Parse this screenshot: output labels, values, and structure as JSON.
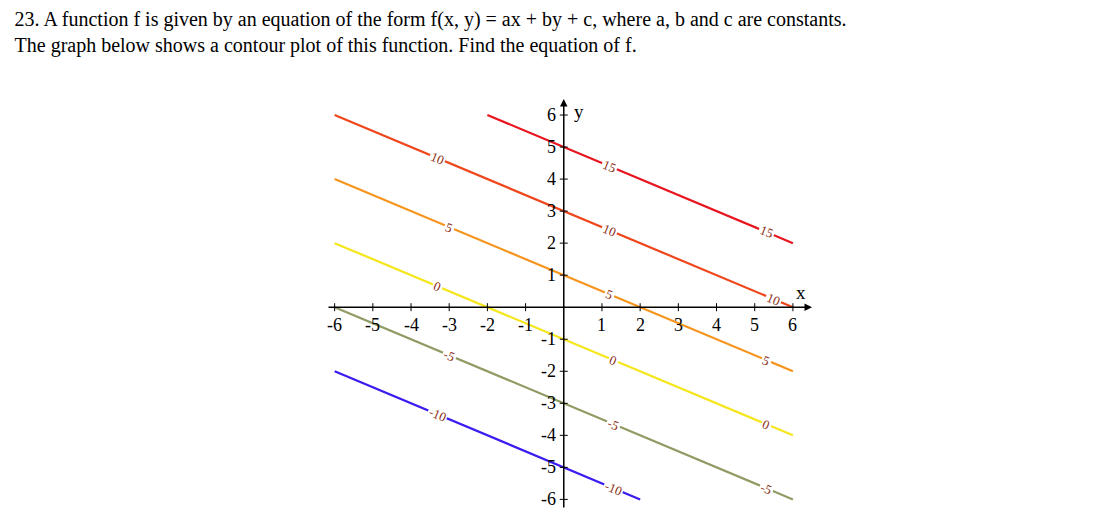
{
  "chart_data": {
    "type": "contour_lines",
    "title": [
      "23. A function f is given by an equation of the form f(x, y) = ax + by + c, where a, b and c are constants.",
      "The graph below shows a contour plot of this function. Find the equation of f."
    ],
    "x_label": "x",
    "y_label": "y",
    "xlim": [
      -6.2,
      6.5
    ],
    "ylim": [
      -6.3,
      6.5
    ],
    "xticks": [
      -6,
      -5,
      -4,
      -3,
      -2,
      -1,
      1,
      2,
      3,
      4,
      5,
      6
    ],
    "yticks": [
      -6,
      -5,
      -4,
      -3,
      -2,
      -1,
      1,
      2,
      3,
      4,
      5,
      6
    ],
    "grid": false,
    "series": [
      {
        "name": "15",
        "color": "#e8141e",
        "x": [
          -2,
          6
        ],
        "y": [
          6,
          2
        ],
        "label_x": [
          1.2,
          5.3
        ],
        "label_y": [
          4.4,
          2.35
        ]
      },
      {
        "name": "10",
        "color": "#f0461c",
        "x": [
          -6,
          6
        ],
        "y": [
          6,
          0
        ],
        "label_x": [
          -3.3,
          1.2,
          5.5
        ],
        "label_y": [
          4.65,
          2.4,
          0.25
        ]
      },
      {
        "name": "5",
        "color": "#f7941d",
        "x": [
          -6,
          6
        ],
        "y": [
          4,
          -2
        ],
        "label_x": [
          -3.0,
          1.2,
          5.3
        ],
        "label_y": [
          2.5,
          0.4,
          -1.65
        ]
      },
      {
        "name": "0",
        "color": "#f5e61c",
        "x": [
          -6,
          6
        ],
        "y": [
          2,
          -4
        ],
        "label_x": [
          -3.3,
          1.3,
          5.3
        ],
        "label_y": [
          0.65,
          -1.65,
          -3.65
        ]
      },
      {
        "name": "-5",
        "color": "#8f9b62",
        "x": [
          -6,
          6
        ],
        "y": [
          0,
          -6
        ],
        "label_x": [
          -3.0,
          1.3,
          5.3
        ],
        "label_y": [
          -1.5,
          -3.65,
          -5.65
        ]
      },
      {
        "name": "-10",
        "color": "#3a1cf0",
        "x": [
          -6,
          2
        ],
        "y": [
          -2,
          -6
        ],
        "label_x": [
          -3.3,
          1.3
        ],
        "label_y": [
          -3.35,
          -5.65
        ]
      }
    ]
  }
}
